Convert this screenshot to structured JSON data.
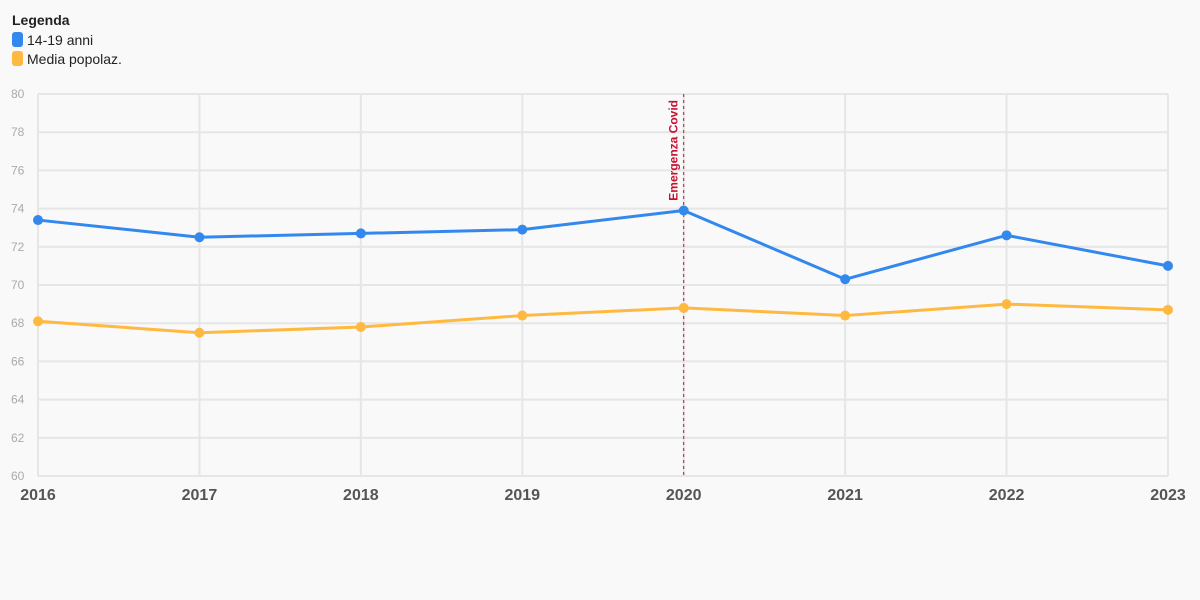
{
  "legend": {
    "title": "Legenda",
    "items": [
      {
        "label": "14-19 anni",
        "color": "#3388ee"
      },
      {
        "label": "Media popolaz.",
        "color": "#ffb940"
      }
    ]
  },
  "chart_data": {
    "type": "line",
    "x": [
      "2016",
      "2017",
      "2018",
      "2019",
      "2020",
      "2021",
      "2022",
      "2023"
    ],
    "series": [
      {
        "name": "14-19 anni",
        "color": "#3388ee",
        "values": [
          73.4,
          72.5,
          72.7,
          72.9,
          73.9,
          70.3,
          72.6,
          71.0
        ]
      },
      {
        "name": "Media popolaz.",
        "color": "#ffb940",
        "values": [
          68.1,
          67.5,
          67.8,
          68.4,
          68.8,
          68.4,
          69.0,
          68.7
        ]
      }
    ],
    "ylim": [
      60,
      80
    ],
    "yticks": [
      60,
      62,
      64,
      66,
      68,
      70,
      72,
      74,
      76,
      78,
      80
    ],
    "grid": true,
    "legend_position": "top-left",
    "annotations": [
      {
        "label": "Emergenza Covid",
        "x": "2020",
        "color": "#c8102e",
        "style": "dashed-vertical-line"
      }
    ]
  }
}
